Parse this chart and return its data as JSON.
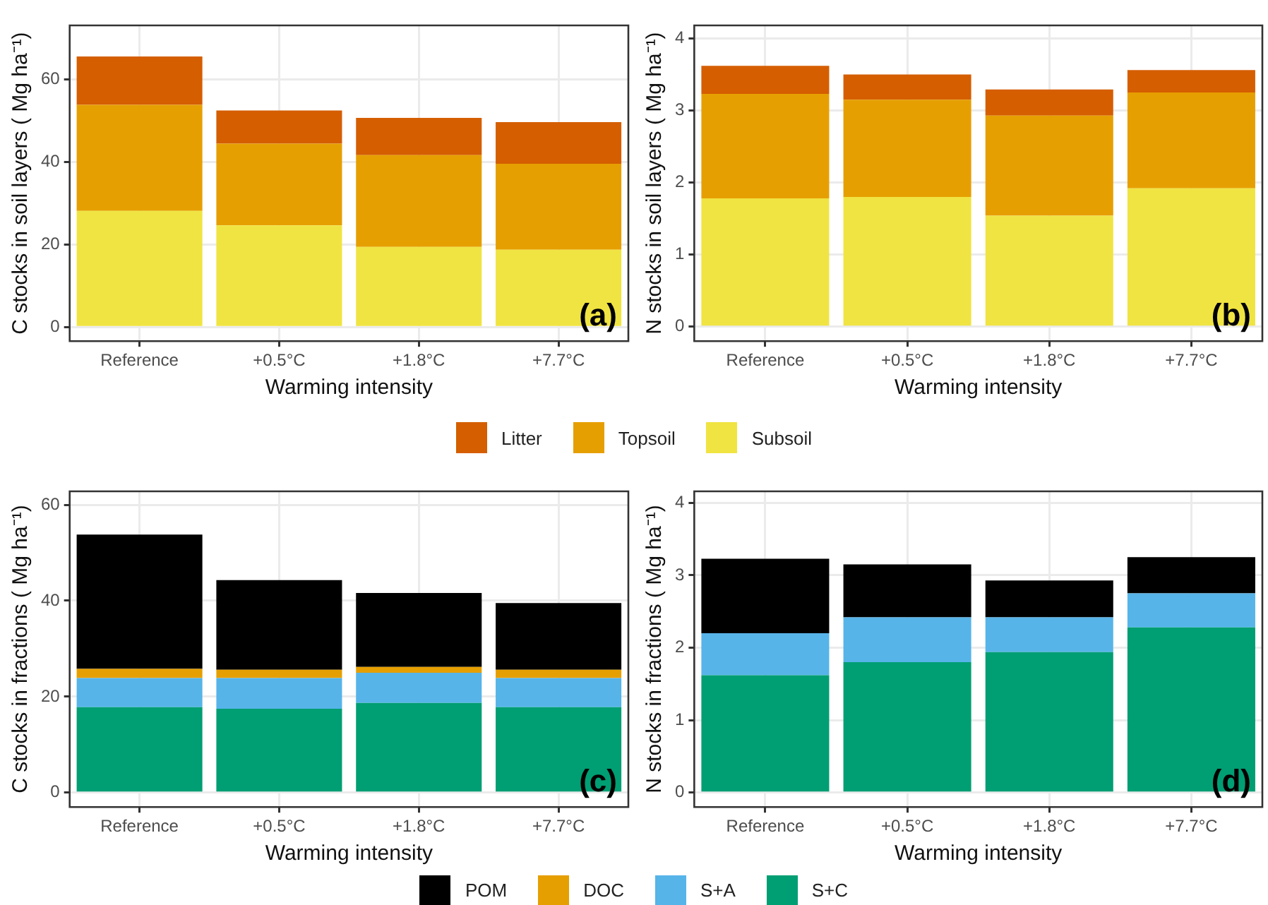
{
  "chart_data": [
    {
      "type": "bar",
      "stacked": true,
      "xlabel": "Warming intensity",
      "ylabel": "C stocks in soil layers ( Mg ha⁻¹)",
      "categories": [
        "Reference",
        "+0.5°C",
        "+1.8°C",
        "+7.7°C"
      ],
      "ylim": [
        -3.4,
        73
      ],
      "yticks": [
        0,
        20,
        40,
        60
      ],
      "grid": true,
      "legend": "bottom",
      "annotations": [
        "(a)"
      ],
      "series": [
        {
          "name": "Subsoil",
          "color": "#f0e442",
          "values": [
            28.1,
            24.6,
            19.4,
            18.7
          ]
        },
        {
          "name": "Topsoil",
          "color": "#e69f00",
          "values": [
            25.7,
            19.8,
            22.2,
            20.8
          ]
        },
        {
          "name": "Litter",
          "color": "#d55e00",
          "values": [
            11.7,
            8.0,
            9.0,
            10.1
          ]
        }
      ]
    },
    {
      "type": "bar",
      "stacked": true,
      "xlabel": "Warming intensity",
      "ylabel": "N stocks in soil layers ( Mg ha⁻¹)",
      "categories": [
        "Reference",
        "+0.5°C",
        "+1.8°C",
        "+7.7°C"
      ],
      "ylim": [
        -0.2,
        4.18
      ],
      "yticks": [
        0,
        1,
        2,
        3,
        4
      ],
      "grid": true,
      "legend": "bottom",
      "annotations": [
        "(b)"
      ],
      "series": [
        {
          "name": "Subsoil",
          "color": "#f0e442",
          "values": [
            1.78,
            1.8,
            1.54,
            1.92
          ]
        },
        {
          "name": "Topsoil",
          "color": "#e69f00",
          "values": [
            1.45,
            1.35,
            1.39,
            1.33
          ]
        },
        {
          "name": "Litter",
          "color": "#d55e00",
          "values": [
            0.39,
            0.35,
            0.36,
            0.31
          ]
        }
      ]
    },
    {
      "type": "bar",
      "stacked": true,
      "xlabel": "Warming intensity",
      "ylabel": "C stocks in fractions ( Mg ha⁻¹)",
      "categories": [
        "Reference",
        "+0.5°C",
        "+1.8°C",
        "+7.7°C"
      ],
      "ylim": [
        -3,
        62.8
      ],
      "yticks": [
        0,
        20,
        40,
        60
      ],
      "grid": true,
      "legend": "bottom",
      "annotations": [
        "(c)"
      ],
      "series": [
        {
          "name": "S+C",
          "color": "#009e73",
          "values": [
            17.8,
            17.5,
            18.7,
            17.8
          ]
        },
        {
          "name": "S+A",
          "color": "#56b4e9",
          "values": [
            6.1,
            6.4,
            6.3,
            6.1
          ]
        },
        {
          "name": "DOC",
          "color": "#e69f00",
          "values": [
            1.9,
            1.7,
            1.2,
            1.7
          ]
        },
        {
          "name": "POM",
          "color": "#000000",
          "values": [
            28.0,
            18.7,
            15.4,
            13.9
          ]
        }
      ]
    },
    {
      "type": "bar",
      "stacked": true,
      "xlabel": "Warming intensity",
      "ylabel": "N stocks in fractions ( Mg ha⁻¹)",
      "categories": [
        "Reference",
        "+0.5°C",
        "+1.8°C",
        "+7.7°C"
      ],
      "ylim": [
        -0.2,
        4.16
      ],
      "yticks": [
        0,
        1,
        2,
        3,
        4
      ],
      "grid": true,
      "legend": "bottom",
      "annotations": [
        "(d)"
      ],
      "series": [
        {
          "name": "S+C",
          "color": "#009e73",
          "values": [
            1.62,
            1.8,
            1.94,
            2.28
          ]
        },
        {
          "name": "S+A",
          "color": "#56b4e9",
          "values": [
            0.58,
            0.62,
            0.48,
            0.47
          ]
        },
        {
          "name": "POM",
          "color": "#000000",
          "values": [
            1.03,
            0.73,
            0.51,
            0.5
          ]
        }
      ]
    }
  ]
}
